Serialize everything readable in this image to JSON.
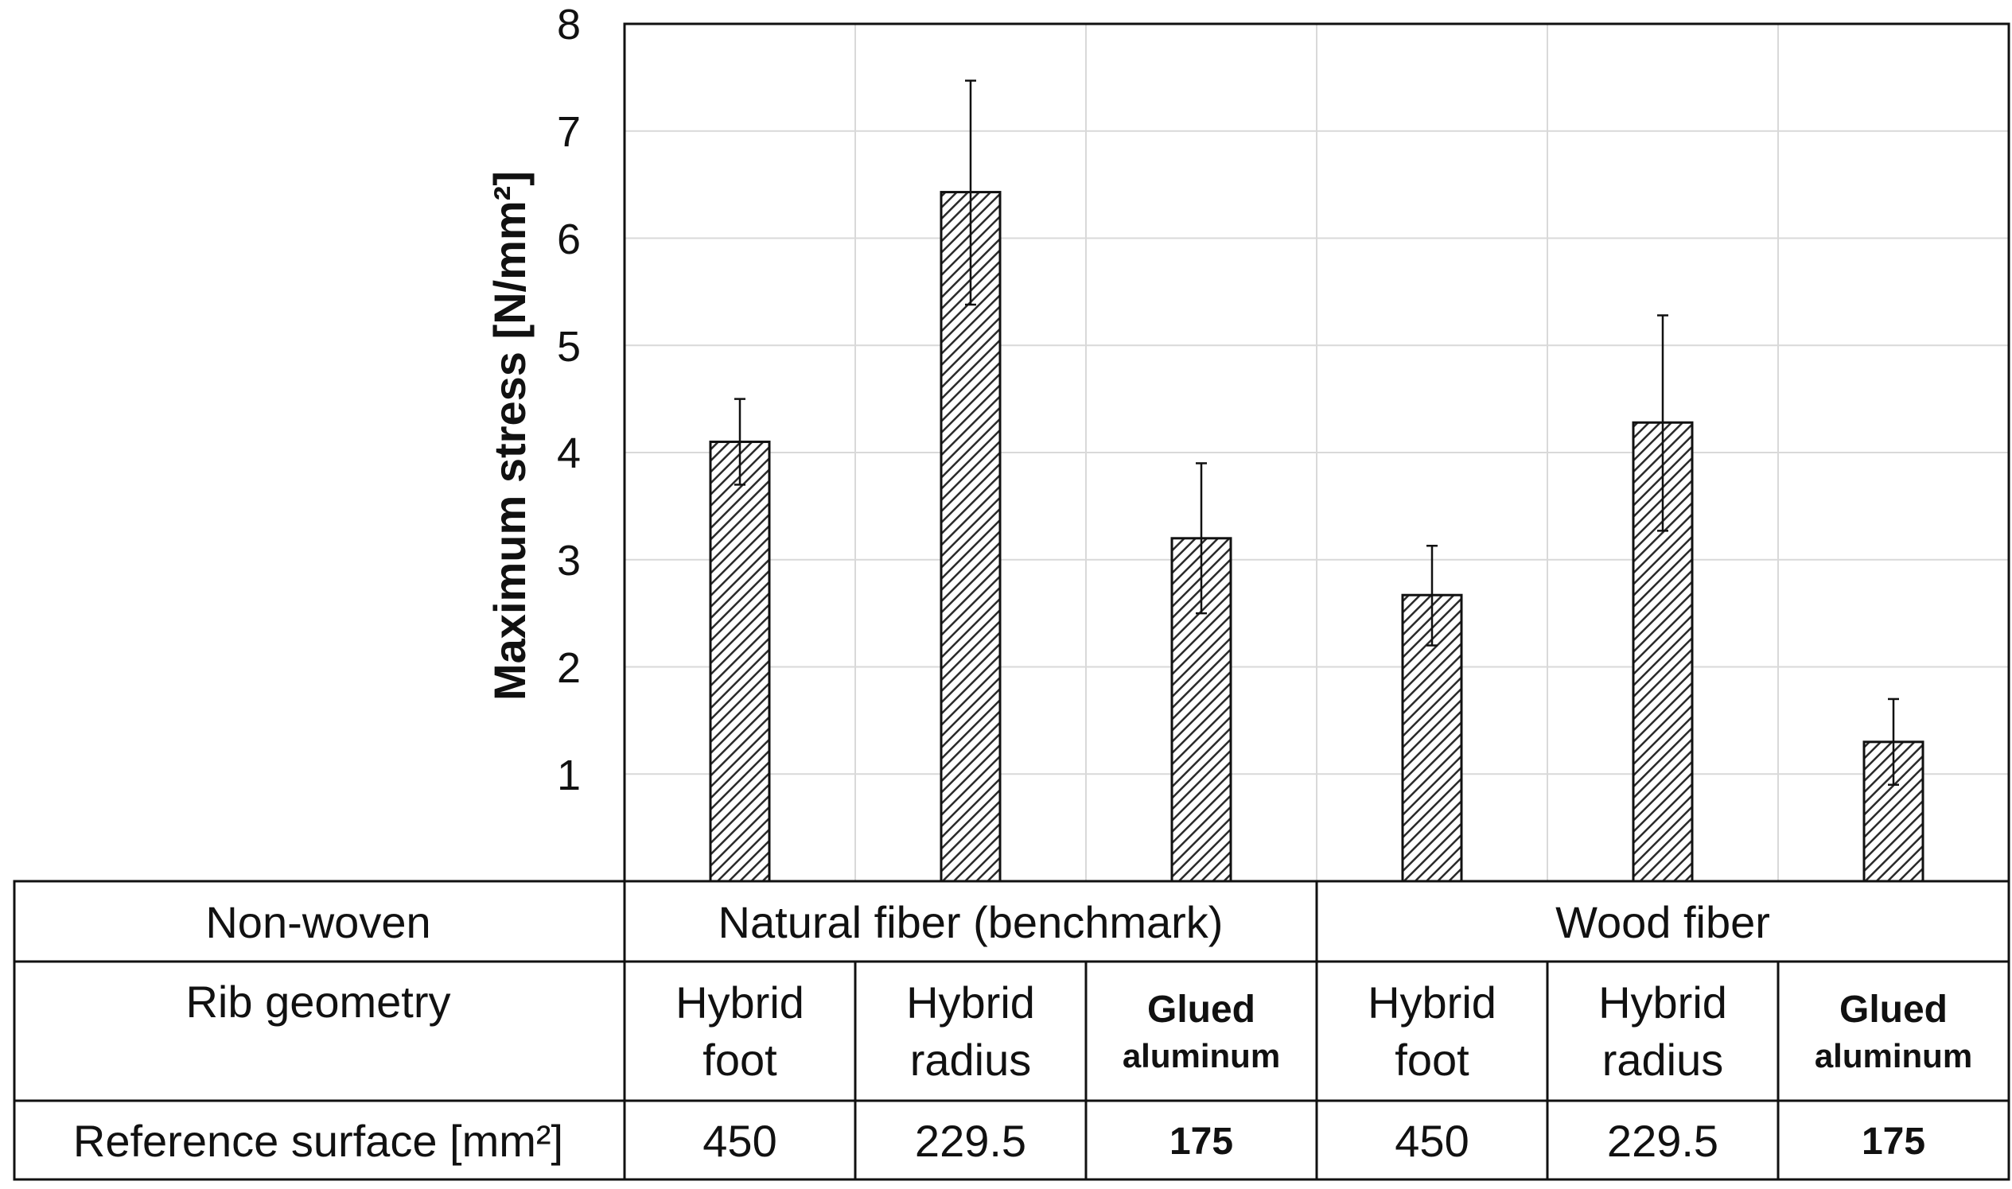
{
  "chart_data": {
    "type": "bar",
    "ylabel": "Maximum stress [N/mm²]",
    "ylim": [
      0,
      8
    ],
    "yticks": [
      "1",
      "2",
      "3",
      "4",
      "5",
      "6",
      "7",
      "8"
    ],
    "grid": true,
    "bars": [
      {
        "value": 4.1,
        "error_low": 3.7,
        "error_high": 4.5
      },
      {
        "value": 6.43,
        "error_low": 5.38,
        "error_high": 7.47
      },
      {
        "value": 3.2,
        "error_low": 2.5,
        "error_high": 3.9
      },
      {
        "value": 2.67,
        "error_low": 2.2,
        "error_high": 3.13
      },
      {
        "value": 4.28,
        "error_low": 3.27,
        "error_high": 5.28
      },
      {
        "value": 1.3,
        "error_low": 0.9,
        "error_high": 1.7
      }
    ]
  },
  "table": {
    "row_nonwoven": {
      "label": "Non-woven",
      "groups": [
        "Natural fiber (benchmark)",
        "Wood fiber"
      ]
    },
    "row_rib": {
      "label": "Rib geometry",
      "cells": [
        {
          "line1": "Hybrid",
          "line2": "foot",
          "bold": false
        },
        {
          "line1": "Hybrid",
          "line2": "radius",
          "bold": false
        },
        {
          "line1": "Glued",
          "line2": "aluminum",
          "bold": true
        },
        {
          "line1": "Hybrid",
          "line2": "foot",
          "bold": false
        },
        {
          "line1": "Hybrid",
          "line2": "radius",
          "bold": false
        },
        {
          "line1": "Glued",
          "line2": "aluminum",
          "bold": true
        }
      ]
    },
    "row_surface": {
      "label": "Reference surface [mm²]",
      "cells": [
        {
          "text": "450",
          "bold": false
        },
        {
          "text": "229.5",
          "bold": false
        },
        {
          "text": "175",
          "bold": true
        },
        {
          "text": "450",
          "bold": false
        },
        {
          "text": "229.5",
          "bold": false
        },
        {
          "text": "175",
          "bold": true
        }
      ]
    }
  }
}
